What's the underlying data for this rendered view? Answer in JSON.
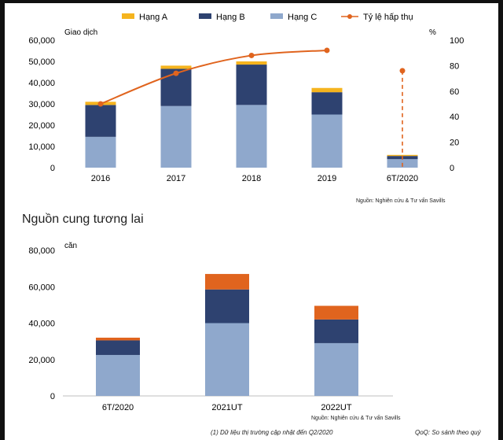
{
  "chart_data": [
    {
      "type": "bar",
      "stacked": true,
      "categories": [
        "2016",
        "2017",
        "2018",
        "2019",
        "6T/2020"
      ],
      "series": [
        {
          "name": "Hạng C",
          "color": "#8fa8cc",
          "values": [
            14500,
            29000,
            29500,
            25000,
            4000
          ]
        },
        {
          "name": "Hạng B",
          "color": "#2e4270",
          "values": [
            15000,
            17500,
            19000,
            10500,
            1500
          ]
        },
        {
          "name": "Hạng A",
          "color": "#f5b41e",
          "values": [
            1500,
            1500,
            1500,
            2000,
            500
          ]
        }
      ],
      "line_series": {
        "name": "Tỷ lệ hấp thụ",
        "color": "#e0641e",
        "values": [
          50,
          74,
          88,
          92,
          76
        ],
        "axis": "right"
      },
      "legend": [
        "Hạng A",
        "Hạng B",
        "Hạng C",
        "Tỷ lệ hấp thụ"
      ],
      "y_left_label": "Giao dịch",
      "y_right_label": "%",
      "ylim_left": [
        0,
        60000
      ],
      "ylim_right": [
        0,
        100
      ],
      "y_left_ticks": [
        "0",
        "10,000",
        "20,000",
        "30,000",
        "40,000",
        "50,000",
        "60,000"
      ],
      "y_right_ticks": [
        "0",
        "20",
        "40",
        "60",
        "80",
        "100"
      ],
      "source": "Nguồn: Nghiên cứu & Tư vấn Savills"
    },
    {
      "type": "bar",
      "stacked": true,
      "title": "Nguồn cung tương lai",
      "categories": [
        "6T/2020",
        "2021UT",
        "2022UT"
      ],
      "series": [
        {
          "name": "Hạng C",
          "color": "#8fa8cc",
          "values": [
            22500,
            40000,
            29000
          ]
        },
        {
          "name": "Hạng B",
          "color": "#2e4270",
          "values": [
            8000,
            18500,
            13000
          ]
        },
        {
          "name": "Hạng A",
          "color": "#e0641e",
          "values": [
            1500,
            8500,
            7500
          ]
        }
      ],
      "y_label": "căn",
      "ylim": [
        0,
        80000
      ],
      "y_ticks": [
        "0",
        "20,000",
        "40,000",
        "60,000",
        "80,000"
      ],
      "source": "Nguồn: Nghiên cứu & Tư vấn Savills"
    }
  ],
  "footer": {
    "note": "(1) Dữ liệu thị trường cập nhật đến Q2/2020",
    "qoq": "QoQ: So sánh theo quý"
  }
}
